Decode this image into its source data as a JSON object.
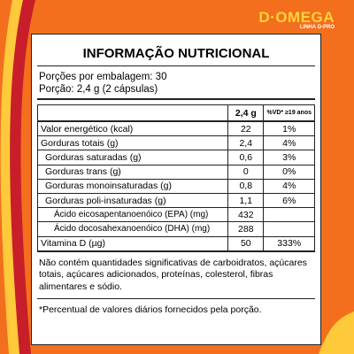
{
  "brand": {
    "name": "D·OMEGA",
    "line": "LINHA D-PRO"
  },
  "label": {
    "title": "INFORMAÇÃO NUTRICIONAL",
    "servings": [
      "Porções por embalagem: 30",
      "Porção: 2,4 g (2 cápsulas)"
    ],
    "table": {
      "header": [
        "2,4 g",
        "%VD* ≥19 anos"
      ],
      "rows": [
        [
          "Valor energético (kcal)",
          "22",
          "1%"
        ],
        [
          "Gorduras totais (g)",
          "2,4",
          "4%"
        ],
        [
          "Gorduras saturadas (g)",
          "0,6",
          "3%"
        ],
        [
          "Gorduras trans (g)",
          "0",
          "0%"
        ],
        [
          "Gorduras monoinsaturadas (g)",
          "0,8",
          "4%"
        ],
        [
          "Gorduras poli-insaturadas (g)",
          "1,1",
          "6%"
        ],
        [
          "Ácido eicosapentanoenóico (EPA) (mg)",
          "432"
        ],
        [
          "Ácido docosahexanoenóico (DHA) (mg)",
          "288"
        ],
        [
          "Vitamina D (µg)",
          "50",
          "333%"
        ]
      ]
    },
    "notes": [
      "Não contém quantidades significativas de carboidratos, açúcares totais, açúcares adicionados, proteínas, colesterol, fibras alimentares e sódio.",
      "*Percentual de valores diários fornecidos pela porção."
    ]
  }
}
